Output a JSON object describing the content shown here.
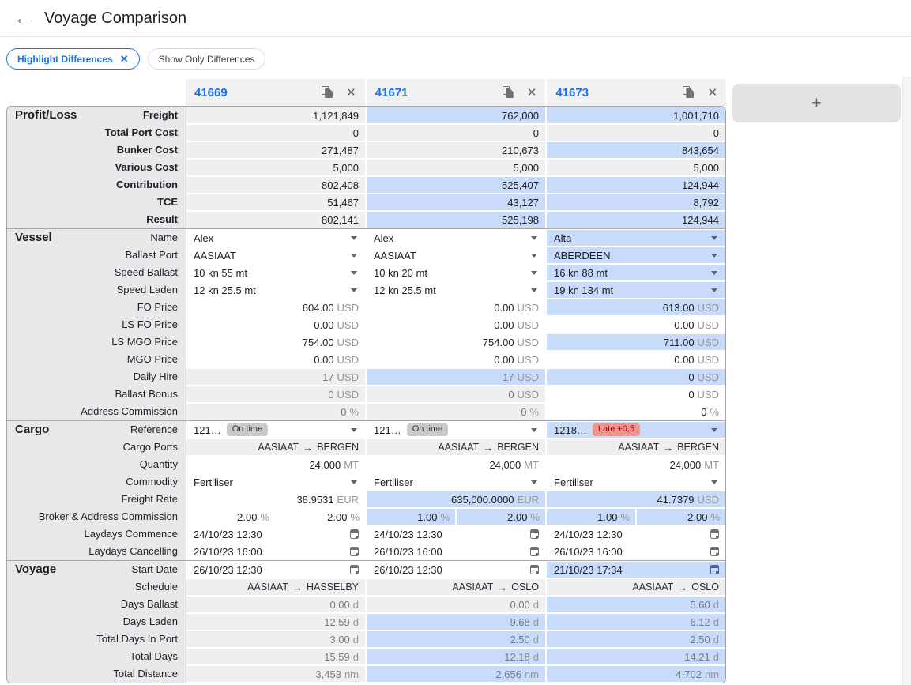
{
  "header": {
    "title": "Voyage Comparison"
  },
  "filters": {
    "chips": [
      {
        "label": "Highlight Differences",
        "active": true,
        "removable": true
      },
      {
        "label": "Show Only Differences",
        "active": false
      }
    ]
  },
  "columns": [
    {
      "id": "41669"
    },
    {
      "id": "41671"
    },
    {
      "id": "41673"
    }
  ],
  "add_button": {
    "label": "+"
  },
  "icons": {
    "back_glyph": "←",
    "close_glyph": "✕",
    "plus_glyph": "+",
    "route_arrow_glyph": "→"
  },
  "colors": {
    "accent_blue": "#1a73e8",
    "diff_highlight_blue": "#c8dbfb",
    "readonly_gray": "#efeff1",
    "label_panel_gray": "#e8e8eb",
    "ontime_badge_bg": "#c9c9cb",
    "late_badge_bg": "#f3938b",
    "late_badge_text": "#70140c"
  },
  "sections": [
    {
      "title": "Profit/Loss",
      "bold_labels": true,
      "rows": [
        {
          "label": "Freight",
          "type": "number",
          "cells": [
            {
              "value": "1,121,849",
              "bg": "gray"
            },
            {
              "value": "762,000",
              "bg": "blue"
            },
            {
              "value": "1,001,710",
              "bg": "blue"
            }
          ]
        },
        {
          "label": "Total Port Cost",
          "type": "number",
          "cells": [
            {
              "value": "0",
              "bg": "gray"
            },
            {
              "value": "0",
              "bg": "gray"
            },
            {
              "value": "0",
              "bg": "gray"
            }
          ]
        },
        {
          "label": "Bunker Cost",
          "type": "number",
          "cells": [
            {
              "value": "271,487",
              "bg": "gray"
            },
            {
              "value": "210,673",
              "bg": "gray"
            },
            {
              "value": "843,654",
              "bg": "blue"
            }
          ]
        },
        {
          "label": "Various Cost",
          "type": "number",
          "cells": [
            {
              "value": "5,000",
              "bg": "gray"
            },
            {
              "value": "5,000",
              "bg": "gray"
            },
            {
              "value": "5,000",
              "bg": "gray"
            }
          ]
        },
        {
          "label": "Contribution",
          "type": "number",
          "cells": [
            {
              "value": "802,408",
              "bg": "gray"
            },
            {
              "value": "525,407",
              "bg": "blue"
            },
            {
              "value": "124,944",
              "bg": "blue"
            }
          ]
        },
        {
          "label": "TCE",
          "type": "number",
          "cells": [
            {
              "value": "51,467",
              "bg": "gray"
            },
            {
              "value": "43,127",
              "bg": "blue"
            },
            {
              "value": "8,792",
              "bg": "blue"
            }
          ]
        },
        {
          "label": "Result",
          "type": "number",
          "cells": [
            {
              "value": "802,141",
              "bg": "gray"
            },
            {
              "value": "525,198",
              "bg": "blue"
            },
            {
              "value": "124,944",
              "bg": "blue"
            }
          ]
        }
      ]
    },
    {
      "title": "Vessel",
      "bold_labels": false,
      "rows": [
        {
          "label": "Name",
          "type": "dropdown",
          "cells": [
            {
              "text": "Alex",
              "bg": "white"
            },
            {
              "text": "Alex",
              "bg": "white"
            },
            {
              "text": "Alta",
              "bg": "blue"
            }
          ]
        },
        {
          "label": "Ballast Port",
          "type": "dropdown",
          "cells": [
            {
              "text": "AASIAAT",
              "bg": "white"
            },
            {
              "text": "AASIAAT",
              "bg": "white"
            },
            {
              "text": "ABERDEEN",
              "bg": "blue"
            }
          ]
        },
        {
          "label": "Speed Ballast",
          "type": "dropdown",
          "cells": [
            {
              "text": "10 kn 55 mt",
              "bg": "white"
            },
            {
              "text": "10 kn 20 mt",
              "bg": "white"
            },
            {
              "text": "16 kn 88 mt",
              "bg": "blue"
            }
          ]
        },
        {
          "label": "Speed Laden",
          "type": "dropdown",
          "cells": [
            {
              "text": "12 kn 25.5 mt",
              "bg": "white"
            },
            {
              "text": "12 kn 25.5 mt",
              "bg": "white"
            },
            {
              "text": "19 kn 134 mt",
              "bg": "blue"
            }
          ]
        },
        {
          "label": "FO Price",
          "type": "number",
          "cells": [
            {
              "value": "604.00",
              "unit": "USD",
              "bg": "white",
              "editable": true
            },
            {
              "value": "0.00",
              "unit": "USD",
              "bg": "white",
              "editable": true
            },
            {
              "value": "613.00",
              "unit": "USD",
              "bg": "blue",
              "editable": true
            }
          ]
        },
        {
          "label": "LS FO Price",
          "type": "number",
          "cells": [
            {
              "value": "0.00",
              "unit": "USD",
              "bg": "white",
              "editable": true
            },
            {
              "value": "0.00",
              "unit": "USD",
              "bg": "white",
              "editable": true
            },
            {
              "value": "0.00",
              "unit": "USD",
              "bg": "white",
              "editable": true
            }
          ]
        },
        {
          "label": "LS MGO Price",
          "type": "number",
          "cells": [
            {
              "value": "754.00",
              "unit": "USD",
              "bg": "white",
              "editable": true
            },
            {
              "value": "754.00",
              "unit": "USD",
              "bg": "white",
              "editable": true
            },
            {
              "value": "711.00",
              "unit": "USD",
              "bg": "blue",
              "editable": true
            }
          ]
        },
        {
          "label": "MGO Price",
          "type": "number",
          "cells": [
            {
              "value": "0.00",
              "unit": "USD",
              "bg": "white",
              "editable": true
            },
            {
              "value": "0.00",
              "unit": "USD",
              "bg": "white",
              "editable": true
            },
            {
              "value": "0.00",
              "unit": "USD",
              "bg": "white",
              "editable": true
            }
          ]
        },
        {
          "label": "Daily Hire",
          "type": "number",
          "cells": [
            {
              "value": "17",
              "unit": "USD",
              "bg": "gray",
              "tone": "muted"
            },
            {
              "value": "17",
              "unit": "USD",
              "bg": "blue",
              "tone": "muted"
            },
            {
              "value": "0",
              "unit": "USD",
              "bg": "blue",
              "editable": true
            }
          ]
        },
        {
          "label": "Ballast Bonus",
          "type": "number",
          "cells": [
            {
              "value": "0",
              "unit": "USD",
              "bg": "gray",
              "tone": "muted"
            },
            {
              "value": "0",
              "unit": "USD",
              "bg": "gray",
              "tone": "muted"
            },
            {
              "value": "0",
              "unit": "USD",
              "bg": "white",
              "editable": true
            }
          ]
        },
        {
          "label": "Address Commission",
          "type": "number",
          "cells": [
            {
              "value": "0",
              "unit": "%",
              "bg": "gray",
              "tone": "muted"
            },
            {
              "value": "0",
              "unit": "%",
              "bg": "gray",
              "tone": "muted"
            },
            {
              "value": "0",
              "unit": "%",
              "bg": "white",
              "editable": true
            }
          ]
        }
      ]
    },
    {
      "title": "Cargo",
      "bold_labels": false,
      "rows": [
        {
          "label": "Reference",
          "type": "dropdown",
          "cells": [
            {
              "text": "121…",
              "badge": {
                "text": "On time",
                "color": "gray"
              },
              "bg": "white"
            },
            {
              "text": "121…",
              "badge": {
                "text": "On time",
                "color": "gray"
              },
              "bg": "white"
            },
            {
              "text": "1218…",
              "badge": {
                "text": "Late +0,5",
                "color": "red"
              },
              "bg": "blue"
            }
          ]
        },
        {
          "label": "Cargo Ports",
          "type": "route",
          "cells": [
            {
              "from": "AASIAAT",
              "to": "BERGEN",
              "bg": "gray"
            },
            {
              "from": "AASIAAT",
              "to": "BERGEN",
              "bg": "gray"
            },
            {
              "from": "AASIAAT",
              "to": "BERGEN",
              "bg": "gray"
            }
          ]
        },
        {
          "label": "Quantity",
          "type": "number",
          "cells": [
            {
              "value": "24,000",
              "unit": "MT",
              "bg": "white",
              "editable": true
            },
            {
              "value": "24,000",
              "unit": "MT",
              "bg": "white",
              "editable": true
            },
            {
              "value": "24,000",
              "unit": "MT",
              "bg": "white",
              "editable": true
            }
          ]
        },
        {
          "label": "Commodity",
          "type": "dropdown",
          "cells": [
            {
              "text": "Fertiliser",
              "bg": "white"
            },
            {
              "text": "Fertiliser",
              "bg": "white"
            },
            {
              "text": "Fertiliser",
              "bg": "white"
            }
          ]
        },
        {
          "label": "Freight Rate",
          "type": "number",
          "cells": [
            {
              "value": "38.9531",
              "unit": "EUR",
              "bg": "white",
              "editable": true
            },
            {
              "value": "635,000.0000",
              "unit": "EUR",
              "bg": "blue",
              "editable": true
            },
            {
              "value": "41.7379",
              "unit": "USD",
              "bg": "blue",
              "editable": true
            }
          ]
        },
        {
          "label": "Broker & Address Commission",
          "type": "split",
          "cells": [
            {
              "parts": [
                {
                  "value": "2.00",
                  "unit": "%",
                  "bg": "white"
                },
                {
                  "value": "2.00",
                  "unit": "%",
                  "bg": "white"
                }
              ]
            },
            {
              "parts": [
                {
                  "value": "1.00",
                  "unit": "%",
                  "bg": "blue"
                },
                {
                  "value": "2.00",
                  "unit": "%",
                  "bg": "blue"
                }
              ]
            },
            {
              "parts": [
                {
                  "value": "1.00",
                  "unit": "%",
                  "bg": "blue"
                },
                {
                  "value": "2.00",
                  "unit": "%",
                  "bg": "blue"
                }
              ]
            }
          ]
        },
        {
          "label": "Laydays Commence",
          "type": "date",
          "cells": [
            {
              "value": "24/10/23 12:30",
              "bg": "white"
            },
            {
              "value": "24/10/23 12:30",
              "bg": "white"
            },
            {
              "value": "24/10/23 12:30",
              "bg": "white"
            }
          ]
        },
        {
          "label": "Laydays Cancelling",
          "type": "date",
          "cells": [
            {
              "value": "26/10/23 16:00",
              "bg": "white"
            },
            {
              "value": "26/10/23 16:00",
              "bg": "white"
            },
            {
              "value": "26/10/23 16:00",
              "bg": "white"
            }
          ]
        }
      ]
    },
    {
      "title": "Voyage",
      "bold_labels": false,
      "rows": [
        {
          "label": "Start Date",
          "type": "date",
          "cells": [
            {
              "value": "26/10/23 12:30",
              "bg": "white"
            },
            {
              "value": "26/10/23 12:30",
              "bg": "white"
            },
            {
              "value": "21/10/23 17:34",
              "bg": "blue"
            }
          ]
        },
        {
          "label": "Schedule",
          "type": "route",
          "cells": [
            {
              "from": "AASIAAT",
              "to": "HASSELBY",
              "bg": "gray"
            },
            {
              "from": "AASIAAT",
              "to": "OSLO",
              "bg": "gray"
            },
            {
              "from": "AASIAAT",
              "to": "OSLO",
              "bg": "gray"
            }
          ]
        },
        {
          "label": "Days Ballast",
          "type": "number",
          "cells": [
            {
              "value": "0.00",
              "unit": "d",
              "bg": "gray",
              "tone": "muted"
            },
            {
              "value": "0.00",
              "unit": "d",
              "bg": "gray",
              "tone": "muted"
            },
            {
              "value": "5.60",
              "unit": "d",
              "bg": "blue",
              "tone": "muted"
            }
          ]
        },
        {
          "label": "Days Laden",
          "type": "number",
          "cells": [
            {
              "value": "12.59",
              "unit": "d",
              "bg": "gray",
              "tone": "muted"
            },
            {
              "value": "9.68",
              "unit": "d",
              "bg": "blue",
              "tone": "muted"
            },
            {
              "value": "6.12",
              "unit": "d",
              "bg": "blue",
              "tone": "muted"
            }
          ]
        },
        {
          "label": "Total Days In Port",
          "type": "number",
          "cells": [
            {
              "value": "3.00",
              "unit": "d",
              "bg": "gray",
              "tone": "muted"
            },
            {
              "value": "2.50",
              "unit": "d",
              "bg": "blue",
              "tone": "muted"
            },
            {
              "value": "2.50",
              "unit": "d",
              "bg": "blue",
              "tone": "muted"
            }
          ]
        },
        {
          "label": "Total Days",
          "type": "number",
          "cells": [
            {
              "value": "15.59",
              "unit": "d",
              "bg": "gray",
              "tone": "muted"
            },
            {
              "value": "12.18",
              "unit": "d",
              "bg": "blue",
              "tone": "muted"
            },
            {
              "value": "14.21",
              "unit": "d",
              "bg": "blue",
              "tone": "muted"
            }
          ]
        },
        {
          "label": "Total Distance",
          "type": "number",
          "cells": [
            {
              "value": "3,453",
              "unit": "nm",
              "bg": "gray",
              "tone": "muted"
            },
            {
              "value": "2,656",
              "unit": "nm",
              "bg": "blue",
              "tone": "muted"
            },
            {
              "value": "4,702",
              "unit": "nm",
              "bg": "blue",
              "tone": "muted"
            }
          ]
        }
      ]
    }
  ]
}
